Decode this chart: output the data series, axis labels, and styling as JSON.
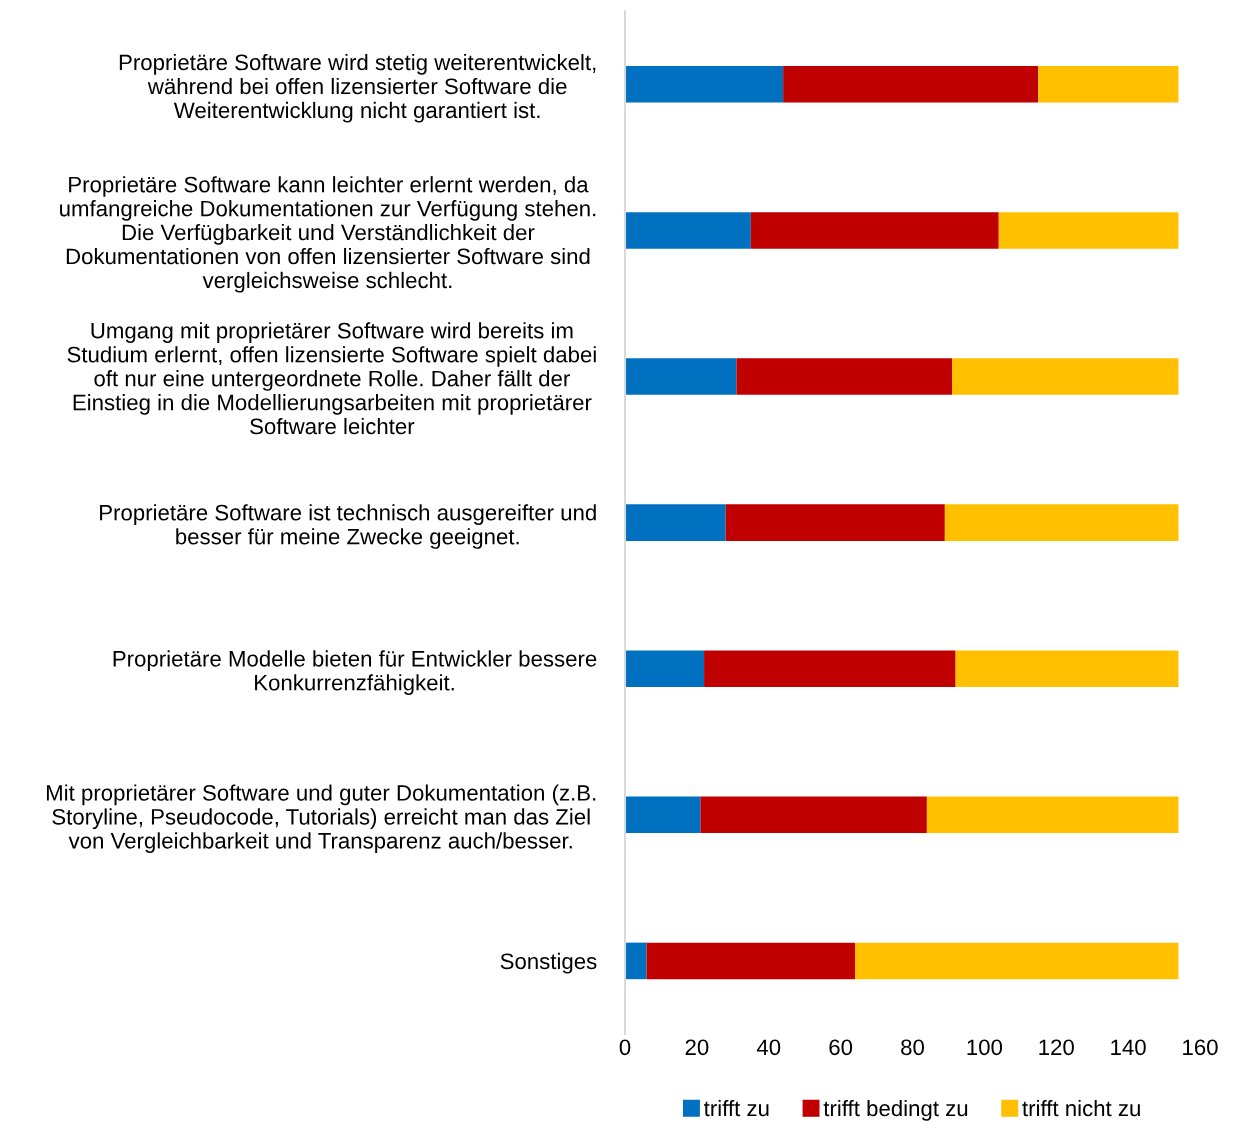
{
  "chart_data": {
    "type": "bar",
    "orientation": "horizontal",
    "stacked": true,
    "categories": [
      "Proprietäre Software wird stetig weiterentwickelt,\nwährend bei offen lizensierter Software die\nWeiterentwicklung nicht garantiert ist.",
      "Proprietäre Software kann leichter erlernt werden, da\numfangreiche Dokumentationen zur Verfügung stehen.\nDie Verfügbarkeit und Verständlichkeit der\nDokumentationen von offen lizensierter Software sind\nvergleichsweise schlecht.",
      "Umgang mit proprietärer Software wird bereits im\nStudium erlernt, offen lizensierte Software spielt dabei\noft nur eine untergeordnete Rolle. Daher fällt der\nEinstieg in die Modellierungsarbeiten mit proprietärer\nSoftware leichter",
      "Proprietäre Software ist technisch ausgereifter und\nbesser für meine Zwecke geeignet.",
      "Proprietäre Modelle bieten für Entwickler bessere\nKonkurrenzfähigkeit.",
      "Mit proprietärer Software und guter Dokumentation (z.B.\nStoryline, Pseudocode, Tutorials) erreicht man das Ziel\nvon Vergleichbarkeit und Transparenz auch/besser.",
      "Sonstiges"
    ],
    "series": [
      {
        "name": "trifft zu",
        "color": "#0070c0",
        "values": [
          44,
          35,
          31,
          28,
          22,
          21,
          6
        ]
      },
      {
        "name": "trifft bedingt zu",
        "color": "#c00000",
        "values": [
          71,
          69,
          60,
          61,
          70,
          63,
          58
        ]
      },
      {
        "name": "trifft nicht zu",
        "color": "#ffc000",
        "values": [
          39,
          50,
          63,
          65,
          62,
          70,
          90
        ]
      }
    ],
    "xlim": [
      0,
      160
    ],
    "xticks": [
      0,
      20,
      40,
      60,
      80,
      100,
      120,
      140,
      160
    ],
    "grid": false,
    "legend": "bottom"
  }
}
